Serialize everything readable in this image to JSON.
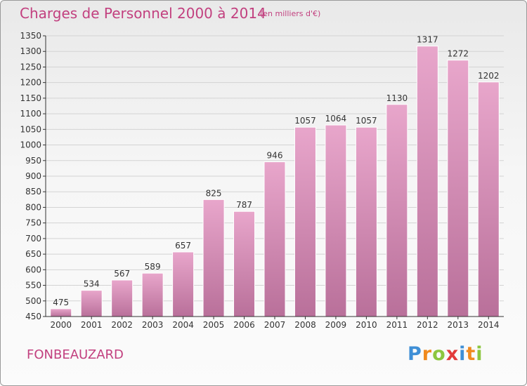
{
  "title": "Charges de Personnel 2000 à 2014",
  "subtitle": "(en milliers d'€)",
  "location": "FONBEAUZARD",
  "logo": {
    "text": "Proxiti",
    "letters": [
      {
        "ch": "P",
        "color": "#3f8fd6"
      },
      {
        "ch": "r",
        "color": "#f08a1e"
      },
      {
        "ch": "o",
        "color": "#8cc63f"
      },
      {
        "ch": "x",
        "color": "#e23b3b"
      },
      {
        "ch": "i",
        "color": "#3f8fd6"
      },
      {
        "ch": "t",
        "color": "#f08a1e"
      },
      {
        "ch": "i",
        "color": "#8cc63f"
      }
    ]
  },
  "colors": {
    "title": "#c2407f",
    "bar_top": "#e8a6cb",
    "bar_bottom": "#b9709a",
    "axis": "#333333"
  },
  "chart_data": {
    "type": "bar",
    "categories": [
      "2000",
      "2001",
      "2002",
      "2003",
      "2004",
      "2005",
      "2006",
      "2007",
      "2008",
      "2009",
      "2010",
      "2011",
      "2012",
      "2013",
      "2014"
    ],
    "values": [
      475,
      534,
      567,
      589,
      657,
      825,
      787,
      946,
      1057,
      1064,
      1057,
      1130,
      1317,
      1272,
      1202
    ],
    "ylim": [
      450,
      1350
    ],
    "yticks": [
      450,
      500,
      550,
      600,
      650,
      700,
      750,
      800,
      850,
      900,
      950,
      1000,
      1050,
      1100,
      1150,
      1200,
      1250,
      1300,
      1350
    ],
    "grid": true,
    "data_labels": true
  }
}
